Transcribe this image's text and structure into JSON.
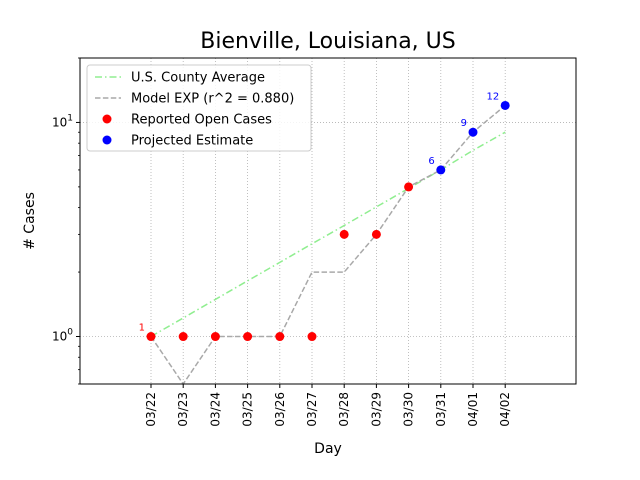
{
  "chart_data": {
    "type": "line",
    "title": "Bienville, Louisiana, US",
    "xlabel": "Day",
    "ylabel": "# Cases",
    "yscale": "log",
    "ylim": [
      0.6,
      20
    ],
    "grid": true,
    "legend_position": "top-left",
    "categories": [
      "03/22",
      "03/23",
      "03/24",
      "03/25",
      "03/26",
      "03/27",
      "03/28",
      "03/29",
      "03/30",
      "03/31",
      "04/01",
      "04/02"
    ],
    "y_ticks": [
      {
        "value": 1,
        "label": "10^0"
      },
      {
        "value": 10,
        "label": "10^1"
      }
    ],
    "series": [
      {
        "name": "U.S. County Average",
        "style": "dashdot",
        "color": "#90ee90",
        "values": [
          1,
          1.22,
          1.49,
          1.82,
          2.22,
          2.71,
          3.3,
          4.03,
          4.92,
          6.0,
          7.4,
          9.0
        ]
      },
      {
        "name": "Model EXP (r^2 = 0.880)",
        "style": "dashed",
        "color": "#a9a9a9",
        "values": [
          1,
          0.5,
          1,
          1,
          1,
          2,
          2,
          3,
          5,
          6,
          9,
          12
        ]
      },
      {
        "name": "Reported Open Cases",
        "style": "points",
        "color": "#ff0000",
        "points": [
          {
            "x": "03/22",
            "y": 1
          },
          {
            "x": "03/23",
            "y": 1
          },
          {
            "x": "03/24",
            "y": 1
          },
          {
            "x": "03/25",
            "y": 1
          },
          {
            "x": "03/26",
            "y": 1
          },
          {
            "x": "03/27",
            "y": 1
          },
          {
            "x": "03/28",
            "y": 3
          },
          {
            "x": "03/29",
            "y": 3
          },
          {
            "x": "03/30",
            "y": 5
          }
        ]
      },
      {
        "name": "Projected Estimate",
        "style": "points",
        "color": "#0000ff",
        "points": [
          {
            "x": "03/31",
            "y": 6
          },
          {
            "x": "04/01",
            "y": 9
          },
          {
            "x": "04/02",
            "y": 12
          }
        ]
      }
    ],
    "annotations": [
      {
        "x": "03/22",
        "y": 1,
        "text": "1",
        "color": "#ff0000"
      },
      {
        "x": "03/31",
        "y": 6,
        "text": "6",
        "color": "#0000ff"
      },
      {
        "x": "04/01",
        "y": 9,
        "text": "9",
        "color": "#0000ff"
      },
      {
        "x": "04/02",
        "y": 12,
        "text": "12",
        "color": "#0000ff"
      }
    ]
  }
}
